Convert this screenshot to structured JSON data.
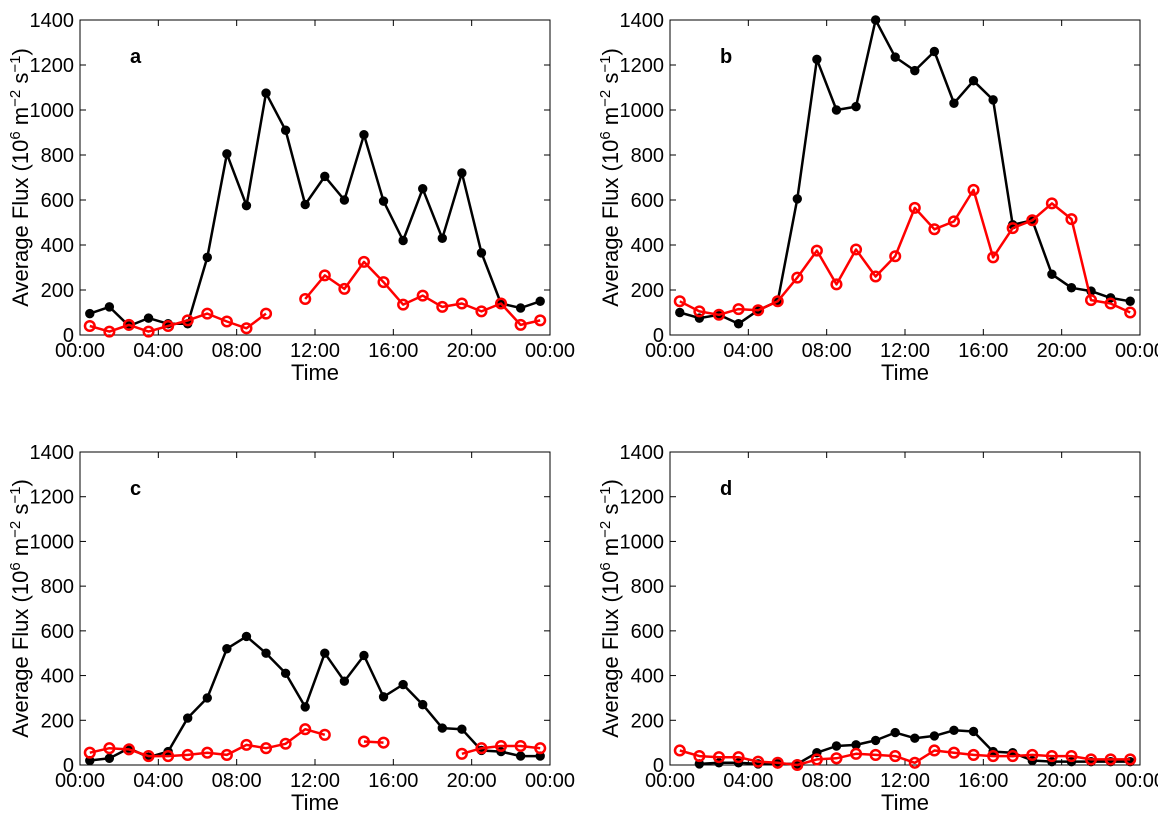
{
  "figure": {
    "x_tick_labels": [
      "00:00",
      "04:00",
      "08:00",
      "12:00",
      "16:00",
      "20:00",
      "00:00"
    ],
    "y_ticks": [
      0,
      200,
      400,
      600,
      800,
      1000,
      1200,
      1400
    ]
  },
  "colors": {
    "series_black": "#000000",
    "series_red": "#ff0000"
  },
  "chart_data": [
    {
      "panel": "a",
      "type": "line",
      "xlabel": "Time",
      "ylabel_main": "Average Flux (10",
      "ylabel_sup1": "6",
      "ylabel_mid": " m",
      "ylabel_sup2": "−2",
      "ylabel_s": " s",
      "ylabel_sup3": "−1",
      "ylabel_end": ")",
      "xlim_hours": [
        0,
        24
      ],
      "ylim": [
        0,
        1400
      ],
      "legend": "none",
      "series": [
        {
          "color": "#000000",
          "marker": "filled-dot",
          "x_hours": [
            0.5,
            1.5,
            2.5,
            3.5,
            4.5,
            5.5,
            6.5,
            7.5,
            8.5,
            9.5,
            10.5,
            11.5,
            12.5,
            13.5,
            14.5,
            15.5,
            16.5,
            17.5,
            18.5,
            19.5,
            20.5,
            21.5,
            22.5,
            23.5
          ],
          "values": [
            95,
            125,
            40,
            75,
            50,
            50,
            345,
            805,
            575,
            1075,
            910,
            580,
            705,
            600,
            890,
            595,
            420,
            650,
            430,
            720,
            365,
            140,
            120,
            150
          ]
        },
        {
          "color": "#ff0000",
          "marker": "open-circle",
          "x_hours": [
            0.5,
            1.5,
            2.5,
            3.5,
            4.5,
            5.5,
            6.5,
            7.5,
            8.5,
            9.5,
            10.5,
            11.5,
            12.5,
            13.5,
            14.5,
            15.5,
            16.5,
            17.5,
            18.5,
            19.5,
            20.5,
            21.5,
            22.5,
            23.5
          ],
          "values": [
            40,
            15,
            45,
            15,
            40,
            65,
            95,
            60,
            30,
            95,
            null,
            160,
            265,
            205,
            325,
            235,
            135,
            175,
            125,
            140,
            105,
            140,
            45,
            65
          ]
        }
      ]
    },
    {
      "panel": "b",
      "type": "line",
      "xlabel": "Time",
      "ylabel_main": "Average Flux (10",
      "ylabel_sup1": "6",
      "ylabel_mid": " m",
      "ylabel_sup2": "−2",
      "ylabel_s": " s",
      "ylabel_sup3": "−1",
      "ylabel_end": ")",
      "xlim_hours": [
        0,
        24
      ],
      "ylim": [
        0,
        1400
      ],
      "legend": "none",
      "series": [
        {
          "color": "#000000",
          "marker": "filled-dot",
          "x_hours": [
            0.5,
            1.5,
            2.5,
            3.5,
            4.5,
            5.5,
            6.5,
            7.5,
            8.5,
            9.5,
            10.5,
            11.5,
            12.5,
            13.5,
            14.5,
            15.5,
            16.5,
            17.5,
            18.5,
            19.5,
            20.5,
            21.5,
            22.5,
            23.5
          ],
          "values": [
            100,
            75,
            90,
            50,
            110,
            150,
            605,
            1225,
            1000,
            1015,
            1400,
            1235,
            1175,
            1260,
            1030,
            1130,
            1045,
            490,
            510,
            270,
            210,
            195,
            165,
            150
          ]
        },
        {
          "color": "#ff0000",
          "marker": "open-circle",
          "x_hours": [
            0.5,
            1.5,
            2.5,
            3.5,
            4.5,
            5.5,
            6.5,
            7.5,
            8.5,
            9.5,
            10.5,
            11.5,
            12.5,
            13.5,
            14.5,
            15.5,
            16.5,
            17.5,
            18.5,
            19.5,
            20.5,
            21.5,
            22.5,
            23.5
          ],
          "values": [
            150,
            105,
            90,
            115,
            110,
            150,
            255,
            375,
            225,
            380,
            260,
            350,
            565,
            470,
            505,
            645,
            345,
            475,
            510,
            585,
            515,
            155,
            140,
            100
          ]
        }
      ]
    },
    {
      "panel": "c",
      "type": "line",
      "xlabel": "Time",
      "ylabel_main": "Average Flux (10",
      "ylabel_sup1": "6",
      "ylabel_mid": " m",
      "ylabel_sup2": "−2",
      "ylabel_s": " s",
      "ylabel_sup3": "−1",
      "ylabel_end": ")",
      "xlim_hours": [
        0,
        24
      ],
      "ylim": [
        0,
        1400
      ],
      "legend": "none",
      "series": [
        {
          "color": "#000000",
          "marker": "filled-dot",
          "x_hours": [
            0.5,
            1.5,
            2.5,
            3.5,
            4.5,
            5.5,
            6.5,
            7.5,
            8.5,
            9.5,
            10.5,
            11.5,
            12.5,
            13.5,
            14.5,
            15.5,
            16.5,
            17.5,
            18.5,
            19.5,
            20.5,
            21.5,
            22.5,
            23.5
          ],
          "values": [
            20,
            30,
            75,
            35,
            60,
            210,
            300,
            520,
            575,
            500,
            410,
            260,
            500,
            375,
            490,
            305,
            360,
            270,
            165,
            160,
            65,
            60,
            40,
            40
          ]
        },
        {
          "color": "#ff0000",
          "marker": "open-circle",
          "x_hours": [
            0.5,
            1.5,
            2.5,
            3.5,
            4.5,
            5.5,
            6.5,
            7.5,
            8.5,
            9.5,
            10.5,
            11.5,
            12.5,
            13.5,
            14.5,
            15.5,
            16.5,
            17.5,
            18.5,
            19.5,
            20.5,
            21.5,
            22.5,
            23.5
          ],
          "values": [
            55,
            75,
            70,
            40,
            40,
            45,
            55,
            45,
            90,
            75,
            95,
            160,
            135,
            null,
            105,
            100,
            null,
            null,
            null,
            50,
            75,
            85,
            85,
            75
          ]
        }
      ]
    },
    {
      "panel": "d",
      "type": "line",
      "xlabel": "Time",
      "ylabel_main": "Average Flux (10",
      "ylabel_sup1": "6",
      "ylabel_mid": " m",
      "ylabel_sup2": "−2",
      "ylabel_s": " s",
      "ylabel_sup3": "−1",
      "ylabel_end": ")",
      "xlim_hours": [
        0,
        24
      ],
      "ylim": [
        0,
        1400
      ],
      "legend": "none",
      "series": [
        {
          "color": "#000000",
          "marker": "filled-dot",
          "x_hours": [
            1.5,
            2.5,
            3.5,
            4.5,
            5.5,
            6.5,
            7.5,
            8.5,
            9.5,
            10.5,
            11.5,
            12.5,
            13.5,
            14.5,
            15.5,
            16.5,
            17.5,
            18.5,
            19.5,
            20.5,
            21.5,
            22.5,
            23.5
          ],
          "values": [
            5,
            10,
            10,
            5,
            5,
            5,
            55,
            85,
            90,
            110,
            145,
            120,
            130,
            155,
            150,
            60,
            55,
            20,
            15,
            15,
            15,
            15,
            15
          ]
        },
        {
          "color": "#ff0000",
          "marker": "open-circle",
          "x_hours": [
            0.5,
            1.5,
            2.5,
            3.5,
            4.5,
            5.5,
            6.5,
            7.5,
            8.5,
            9.5,
            10.5,
            11.5,
            12.5,
            13.5,
            14.5,
            15.5,
            16.5,
            17.5,
            18.5,
            19.5,
            20.5,
            21.5,
            22.5,
            23.5
          ],
          "values": [
            65,
            40,
            35,
            35,
            15,
            10,
            0,
            25,
            30,
            50,
            45,
            40,
            10,
            65,
            55,
            45,
            40,
            40,
            45,
            40,
            40,
            25,
            25,
            25
          ]
        }
      ]
    }
  ]
}
